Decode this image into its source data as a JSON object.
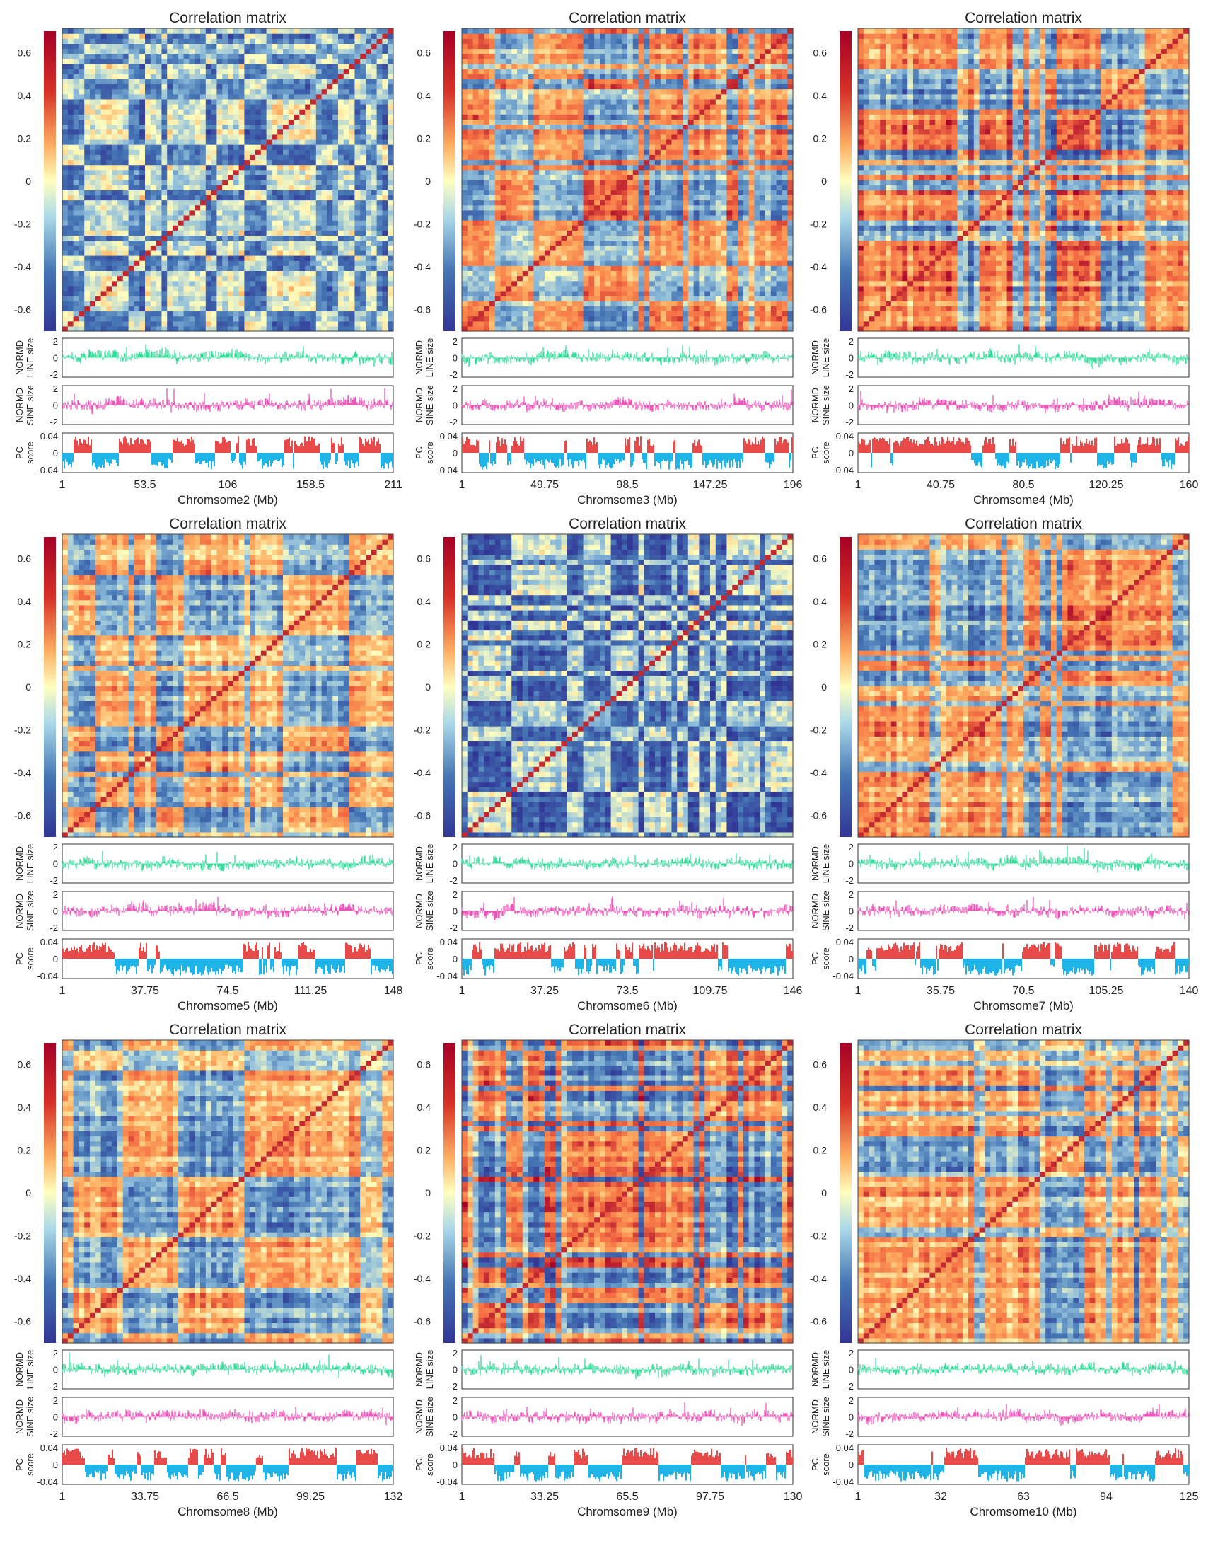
{
  "figure": {
    "colorbar_ticks": [
      "0.6",
      "0.4",
      "0.2",
      "0",
      "-0.2",
      "-0.4",
      "-0.6"
    ],
    "colors": {
      "line_size": "#33dd99",
      "sine_size": "#ee55bb",
      "pc_positive": "#e84a4a",
      "pc_negative": "#1fb4e8",
      "matrix_high": "#d73027",
      "matrix_mid": "#ffffbf",
      "matrix_low": "#4575b4",
      "colorbar_top": "#a50026",
      "colorbar_bottom": "#313695"
    },
    "track_labels": {
      "line": [
        "NORMD",
        "LINE size"
      ],
      "sine": [
        "NORMD",
        "SINE size"
      ],
      "pc": [
        "PC",
        "score"
      ]
    },
    "track_ticks": {
      "line": [
        "2",
        "0",
        "-2"
      ],
      "sine": [
        "2",
        "0",
        "-2"
      ],
      "pc": [
        "0.04",
        "0",
        "-0.04"
      ]
    }
  },
  "chart_data": [
    {
      "type": "heatmap",
      "title": "Correlation matrix",
      "xlabel": "Chromsome2 (Mb)",
      "xticks": [
        "1",
        "53.5",
        "106",
        "158.5",
        "211"
      ],
      "xlim": [
        1,
        211
      ],
      "colorbar_range": [
        -0.7,
        0.7
      ]
    },
    {
      "type": "heatmap",
      "title": "Correlation matrix",
      "xlabel": "Chromsome3 (Mb)",
      "xticks": [
        "1",
        "49.75",
        "98.5",
        "147.25",
        "196"
      ],
      "xlim": [
        1,
        196
      ],
      "colorbar_range": [
        -0.7,
        0.7
      ]
    },
    {
      "type": "heatmap",
      "title": "Correlation matrix",
      "xlabel": "Chromsome4 (Mb)",
      "xticks": [
        "1",
        "40.75",
        "80.5",
        "120.25",
        "160"
      ],
      "xlim": [
        1,
        160
      ],
      "colorbar_range": [
        -0.7,
        0.7
      ]
    },
    {
      "type": "heatmap",
      "title": "Correlation matrix",
      "xlabel": "Chromsome5 (Mb)",
      "xticks": [
        "1",
        "37.75",
        "74.5",
        "111.25",
        "148"
      ],
      "xlim": [
        1,
        148
      ],
      "colorbar_range": [
        -0.7,
        0.7
      ]
    },
    {
      "type": "heatmap",
      "title": "Correlation matrix",
      "xlabel": "Chromsome6 (Mb)",
      "xticks": [
        "1",
        "37.25",
        "73.5",
        "109.75",
        "146"
      ],
      "xlim": [
        1,
        146
      ],
      "colorbar_range": [
        -0.7,
        0.7
      ]
    },
    {
      "type": "heatmap",
      "title": "Correlation matrix",
      "xlabel": "Chromsome7 (Mb)",
      "xticks": [
        "1",
        "35.75",
        "70.5",
        "105.25",
        "140"
      ],
      "xlim": [
        1,
        140
      ],
      "colorbar_range": [
        -0.7,
        0.7
      ]
    },
    {
      "type": "heatmap",
      "title": "Correlation matrix",
      "xlabel": "Chromsome8 (Mb)",
      "xticks": [
        "1",
        "33.75",
        "66.5",
        "99.25",
        "132"
      ],
      "xlim": [
        1,
        132
      ],
      "colorbar_range": [
        -0.7,
        0.7
      ]
    },
    {
      "type": "heatmap",
      "title": "Correlation matrix",
      "xlabel": "Chromsome9 (Mb)",
      "xticks": [
        "1",
        "33.25",
        "65.5",
        "97.75",
        "130"
      ],
      "xlim": [
        1,
        130
      ],
      "colorbar_range": [
        -0.7,
        0.7
      ]
    },
    {
      "type": "heatmap",
      "title": "Correlation matrix",
      "xlabel": "Chromsome10 (Mb)",
      "xticks": [
        "1",
        "32",
        "63",
        "94",
        "125"
      ],
      "xlim": [
        1,
        125
      ],
      "colorbar_range": [
        -0.7,
        0.7
      ]
    }
  ]
}
